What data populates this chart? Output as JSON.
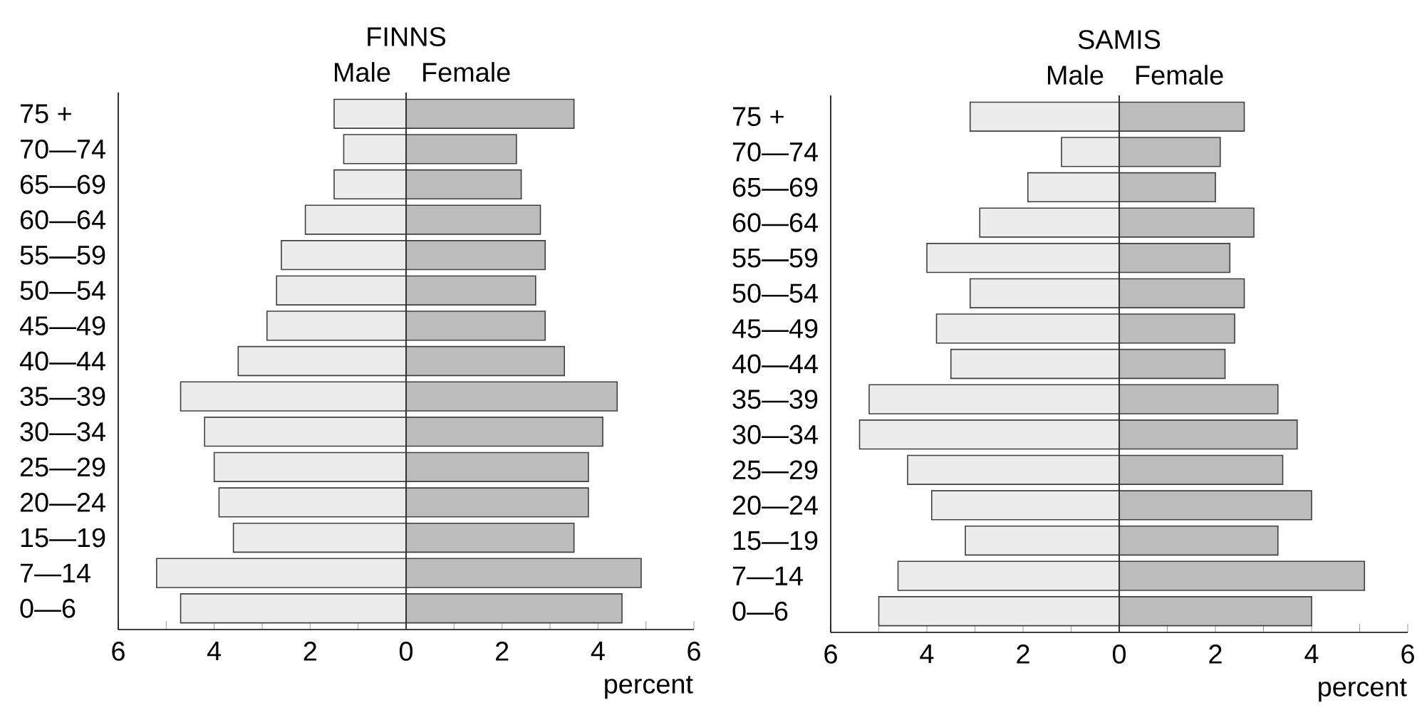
{
  "chart_data": [
    {
      "type": "bar",
      "orientation": "horizontal",
      "stacked": true,
      "title": "FINNS",
      "xlabel": "percent",
      "categories": [
        "75 +",
        "70—74",
        "65—69",
        "60—64",
        "55—59",
        "50—54",
        "45—49",
        "40—44",
        "35—39",
        "30—34",
        "25—29",
        "20—24",
        "15—19",
        "7—14",
        "0—6"
      ],
      "series": [
        {
          "name": "Male",
          "color": "#ececec",
          "values": [
            -1.5,
            -1.3,
            -1.5,
            -2.1,
            -2.6,
            -2.7,
            -2.9,
            -3.5,
            -4.7,
            -4.2,
            -4.0,
            -3.9,
            -3.6,
            -5.2,
            -4.7
          ]
        },
        {
          "name": "Female",
          "color": "#bcbcbc",
          "values": [
            3.5,
            2.3,
            2.4,
            2.8,
            2.9,
            2.7,
            2.9,
            3.3,
            4.4,
            4.1,
            3.8,
            3.8,
            3.5,
            4.9,
            4.5
          ]
        }
      ],
      "xlim": [
        -6,
        6
      ],
      "xticks": [
        {
          "value": -6,
          "label": "6"
        },
        {
          "value": -5,
          "label": null
        },
        {
          "value": -4,
          "label": "4"
        },
        {
          "value": -3,
          "label": null
        },
        {
          "value": -2,
          "label": "2"
        },
        {
          "value": -1,
          "label": null
        },
        0,
        {
          "value": 1,
          "label": null
        },
        2,
        {
          "value": 3,
          "label": null
        },
        4,
        {
          "value": 5,
          "label": null
        },
        6
      ],
      "ref_lines": [
        {
          "axis": "x",
          "value": 0,
          "color": "#333333"
        }
      ]
    },
    {
      "type": "bar",
      "orientation": "horizontal",
      "stacked": true,
      "title": "SAMIS",
      "xlabel": "percent",
      "categories": [
        "75 +",
        "70—74",
        "65—69",
        "60—64",
        "55—59",
        "50—54",
        "45—49",
        "40—44",
        "35—39",
        "30—34",
        "25—29",
        "20—24",
        "15—19",
        "7—14",
        "0—6"
      ],
      "series": [
        {
          "name": "Male",
          "color": "#ececec",
          "values": [
            -3.1,
            -1.2,
            -1.9,
            -2.9,
            -4.0,
            -3.1,
            -3.8,
            -3.5,
            -5.2,
            -5.4,
            -4.4,
            -3.9,
            -3.2,
            -4.6,
            -5.0
          ]
        },
        {
          "name": "Female",
          "color": "#bcbcbc",
          "values": [
            2.6,
            2.1,
            2.0,
            2.8,
            2.3,
            2.6,
            2.4,
            2.2,
            3.3,
            3.7,
            3.4,
            4.0,
            3.3,
            5.1,
            4.0
          ]
        }
      ],
      "xlim": [
        -6,
        6
      ],
      "xticks": [
        {
          "value": -6,
          "label": "6"
        },
        {
          "value": -5,
          "label": null
        },
        {
          "value": -4,
          "label": "4"
        },
        {
          "value": -3,
          "label": null
        },
        {
          "value": -2,
          "label": "2"
        },
        {
          "value": -1,
          "label": null
        },
        0,
        {
          "value": 1,
          "label": null
        },
        2,
        {
          "value": 3,
          "label": null
        },
        4,
        {
          "value": 5,
          "label": null
        },
        6
      ],
      "ref_lines": [
        {
          "axis": "x",
          "value": 0,
          "color": "#333333"
        }
      ]
    }
  ]
}
